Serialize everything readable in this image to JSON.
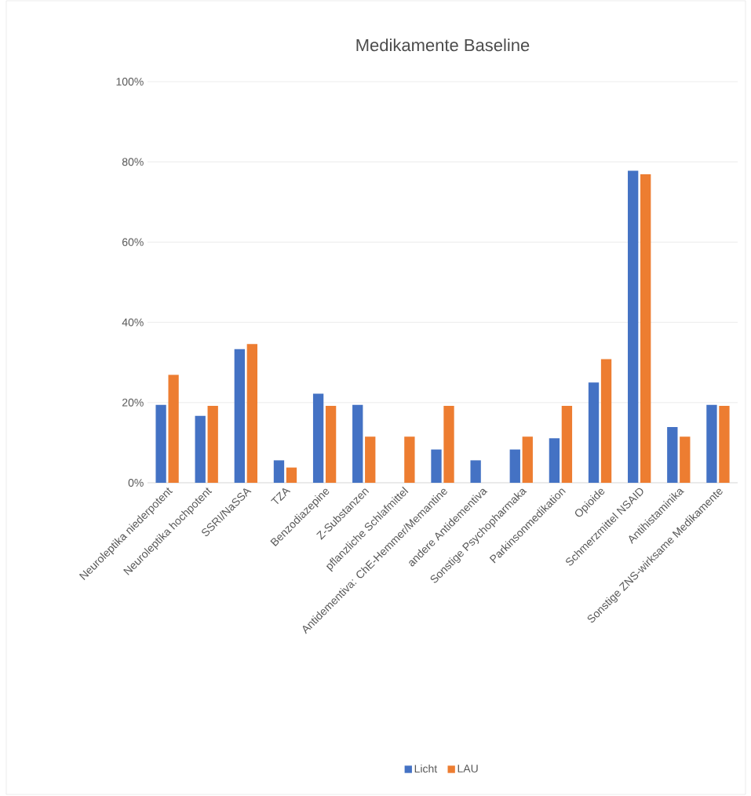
{
  "chart_data": {
    "type": "bar",
    "title": "Medikamente Baseline",
    "categories": [
      "Neuroleptika niederpotent",
      "Neuroleptika hochpotent",
      "SSRI/NaSSA",
      "TZA",
      "Benzodiazepine",
      "Z-Substanzen",
      "pflanzliche Schlafmittel",
      "Antidementiva: ChE-Hemmer/Memantine",
      "andere Antidementiva",
      "Sonstige Psychopharmaka",
      "Parkinsonmedikation",
      "Opioide",
      "Schmerzmittel NSAID",
      "Antihistaminika",
      "Sonstige ZNS-wirksame Medikamente"
    ],
    "series": [
      {
        "name": "Licht",
        "color": "#4472c4",
        "values": [
          19.4,
          16.7,
          33.3,
          5.6,
          22.2,
          19.4,
          0,
          8.3,
          5.6,
          8.3,
          11.1,
          25.0,
          77.8,
          13.9,
          19.4
        ]
      },
      {
        "name": "LAU",
        "color": "#ed7d31",
        "values": [
          26.9,
          19.2,
          34.6,
          3.8,
          19.2,
          11.5,
          11.5,
          19.2,
          0,
          11.5,
          19.2,
          30.8,
          76.9,
          11.5,
          19.2
        ]
      }
    ],
    "ylim": [
      0,
      100
    ],
    "yticks": [
      {
        "value": 0,
        "label": "0%"
      },
      {
        "value": 20,
        "label": "20%"
      },
      {
        "value": 40,
        "label": "40%"
      },
      {
        "value": 60,
        "label": "60%"
      },
      {
        "value": 80,
        "label": "80%"
      },
      {
        "value": 100,
        "label": "100%"
      }
    ],
    "grid": "y",
    "legend": "bottom"
  }
}
